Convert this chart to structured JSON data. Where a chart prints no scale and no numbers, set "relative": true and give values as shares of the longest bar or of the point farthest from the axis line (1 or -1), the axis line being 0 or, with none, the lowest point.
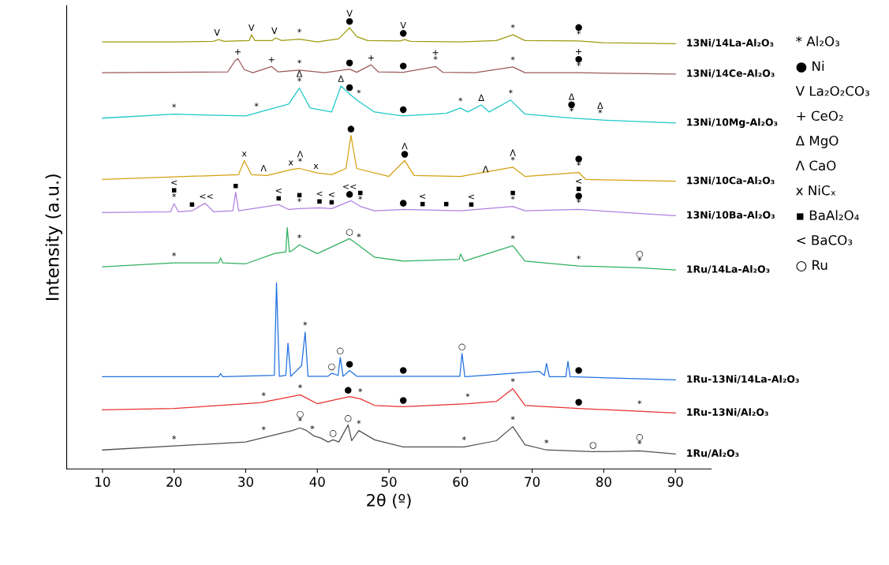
{
  "chart_data": {
    "type": "line",
    "relative": true,
    "xlabel": "2θ (º)",
    "ylabel": "Intensity (a.u.)",
    "xlim": [
      5,
      95
    ],
    "xticks": [
      10,
      20,
      30,
      40,
      50,
      60,
      70,
      80,
      90
    ],
    "grid": false,
    "legend": false,
    "marker": "none",
    "line_style": "solid",
    "series": [
      {
        "name": "13Ni/14La-Al₂O₃",
        "color": "#a09a10",
        "x": [
          10,
          20,
          25.5,
          26.2,
          27,
          30.5,
          30.8,
          31.3,
          33.7,
          34.2,
          35,
          37.5,
          40,
          43,
          44.5,
          45.5,
          47,
          51.5,
          52.2,
          53,
          60,
          65,
          67.3,
          69,
          76.5,
          80,
          90
        ],
        "values": [
          0.968,
          0.968,
          0.969,
          0.973,
          0.969,
          0.971,
          0.984,
          0.971,
          0.971,
          0.977,
          0.971,
          0.974,
          0.968,
          0.975,
          1.0,
          0.98,
          0.971,
          0.97,
          0.973,
          0.969,
          0.968,
          0.971,
          0.984,
          0.971,
          0.97,
          0.966,
          0.964
        ]
      },
      {
        "name": "13Ni/14Ce-Al₂O₃",
        "color": "#9a5a5a",
        "x": [
          10,
          27.5,
          28.5,
          28.9,
          29.8,
          31,
          33.6,
          34.5,
          37.5,
          41,
          44.5,
          45.5,
          47.5,
          48.5,
          52,
          56.5,
          57.5,
          62,
          67.3,
          69,
          76.5,
          90
        ],
        "values": [
          0.898,
          0.9,
          0.925,
          0.93,
          0.905,
          0.898,
          0.912,
          0.9,
          0.904,
          0.898,
          0.906,
          0.899,
          0.916,
          0.9,
          0.899,
          0.912,
          0.899,
          0.898,
          0.911,
          0.898,
          0.898,
          0.895
        ]
      },
      {
        "name": "13Ni/10Mg-Al₂O₃",
        "color": "#20c8c8",
        "x": [
          10,
          20,
          30,
          36,
          37.5,
          39,
          42,
          43.3,
          44.5,
          45.5,
          48,
          52,
          58,
          60,
          61,
          62.9,
          64,
          67,
          69,
          75.5,
          79.5,
          90
        ],
        "values": [
          0.795,
          0.804,
          0.8,
          0.827,
          0.863,
          0.818,
          0.809,
          0.868,
          0.85,
          0.836,
          0.809,
          0.8,
          0.806,
          0.818,
          0.809,
          0.825,
          0.809,
          0.836,
          0.804,
          0.795,
          0.791,
          0.784
        ]
      },
      {
        "name": "13Ni/10Ca-Al₂O₃",
        "color": "#d4a010",
        "x": [
          10,
          29,
          29.8,
          30.8,
          33,
          36.5,
          37.5,
          40,
          42,
          44,
          44.7,
          45.5,
          50,
          52.2,
          53.5,
          60,
          67.3,
          69,
          76.5,
          77.5,
          90
        ],
        "values": [
          0.656,
          0.667,
          0.699,
          0.667,
          0.665,
          0.679,
          0.681,
          0.671,
          0.667,
          0.681,
          0.756,
          0.681,
          0.663,
          0.699,
          0.665,
          0.663,
          0.684,
          0.663,
          0.672,
          0.656,
          0.652
        ]
      },
      {
        "name": "13Ni/10Ba-Al₂O₃",
        "color": "#b080e0",
        "x": [
          10,
          19.5,
          20,
          20.6,
          22.5,
          24.3,
          24.8,
          25.5,
          28.2,
          28.6,
          29,
          34.6,
          36,
          37.5,
          40.3,
          42,
          44.7,
          46,
          48,
          52,
          60,
          67.3,
          69,
          76.5,
          90
        ],
        "values": [
          0.581,
          0.583,
          0.601,
          0.583,
          0.585,
          0.602,
          0.595,
          0.583,
          0.585,
          0.627,
          0.585,
          0.599,
          0.588,
          0.59,
          0.592,
          0.59,
          0.608,
          0.595,
          0.585,
          0.588,
          0.585,
          0.595,
          0.585,
          0.588,
          0.574
        ]
      },
      {
        "name": "1Ru/14La-Al₂O₃",
        "color": "#30b060",
        "x": [
          10,
          20,
          26.2,
          26.5,
          26.8,
          30,
          34,
          35.6,
          35.8,
          36.1,
          36.5,
          37.5,
          40,
          44.5,
          45.5,
          48,
          52,
          59.8,
          60,
          60.5,
          67.3,
          69,
          76.5,
          85,
          90
        ],
        "values": [
          0.458,
          0.467,
          0.467,
          0.478,
          0.467,
          0.465,
          0.488,
          0.492,
          0.547,
          0.492,
          0.495,
          0.508,
          0.488,
          0.522,
          0.51,
          0.48,
          0.471,
          0.475,
          0.487,
          0.471,
          0.506,
          0.471,
          0.46,
          0.456,
          0.451
        ]
      },
      {
        "name": "1Ru-13Ni/14La-Al₂O₃",
        "color": "#2070e0",
        "x": [
          10,
          26.2,
          26.5,
          26.8,
          34,
          34.3,
          34.7,
          35.6,
          35.9,
          36.3,
          37.8,
          38.3,
          38.7,
          41.5,
          42,
          42.9,
          43.2,
          43.6,
          44.5,
          45.5,
          59.9,
          60.2,
          60.6,
          71,
          71.7,
          72,
          72.4,
          74.7,
          75,
          75.3,
          90
        ],
        "values": [
          0.209,
          0.209,
          0.216,
          0.209,
          0.212,
          0.422,
          0.21,
          0.212,
          0.285,
          0.21,
          0.234,
          0.31,
          0.21,
          0.21,
          0.217,
          0.212,
          0.253,
          0.21,
          0.223,
          0.21,
          0.21,
          0.262,
          0.209,
          0.221,
          0.212,
          0.239,
          0.209,
          0.209,
          0.244,
          0.209,
          0.202
        ]
      },
      {
        "name": "1Ru-13Ni/Al₂O₃",
        "color": "#e83030",
        "x": [
          10,
          20,
          32,
          37.6,
          40,
          44.5,
          46,
          48,
          52,
          61,
          65,
          67.3,
          69,
          76.5,
          90
        ],
        "values": [
          0.134,
          0.137,
          0.15,
          0.168,
          0.148,
          0.164,
          0.159,
          0.144,
          0.141,
          0.148,
          0.153,
          0.182,
          0.144,
          0.137,
          0.127
        ]
      },
      {
        "name": "1Ru/Al₂O₃",
        "color": "#505050",
        "x": [
          10,
          20,
          30,
          33,
          36.5,
          37.6,
          38.5,
          39.5,
          40.5,
          41.5,
          42.2,
          43,
          44.3,
          44.8,
          45.8,
          48,
          52,
          60.5,
          65,
          67.3,
          69,
          72,
          78.5,
          85,
          90
        ],
        "values": [
          0.043,
          0.052,
          0.061,
          0.073,
          0.087,
          0.093,
          0.087,
          0.075,
          0.07,
          0.061,
          0.066,
          0.061,
          0.1,
          0.064,
          0.087,
          0.066,
          0.05,
          0.05,
          0.064,
          0.096,
          0.055,
          0.043,
          0.039,
          0.041,
          0.034
        ]
      }
    ],
    "annotations": [
      "* Al₂O₃",
      "● Ni",
      "V La₂O₂CO₃",
      "+ CeO₂",
      "Δ MgO",
      "Λ CaO",
      "x NiCₓ",
      "▪ BaAl₂O₄",
      "< BaCO₃",
      "○ Ru",
      {
        "text": "V",
        "x": 26,
        "y": 0.973
      },
      {
        "text": "V",
        "x": 30.8,
        "y": 0.984
      },
      {
        "text": "V",
        "x": 34,
        "y": 0.977
      },
      {
        "text": "*",
        "x": 37.5,
        "y": 0.974
      },
      {
        "text": "V\n●",
        "x": 44.5,
        "y": 1.0
      },
      {
        "text": "V\n●",
        "x": 52,
        "y": 0.973
      },
      {
        "text": "*",
        "x": 67.3,
        "y": 0.984
      },
      {
        "text": "●\n*",
        "x": 76.5,
        "y": 0.97
      },
      {
        "text": "+",
        "x": 28.9,
        "y": 0.93
      },
      {
        "text": "+",
        "x": 33.6,
        "y": 0.912
      },
      {
        "text": "*",
        "x": 37.5,
        "y": 0.904
      },
      {
        "text": "●",
        "x": 44.5,
        "y": 0.906
      },
      {
        "text": "+",
        "x": 47.5,
        "y": 0.916
      },
      {
        "text": "●",
        "x": 52,
        "y": 0.899
      },
      {
        "text": "+\n*",
        "x": 56.5,
        "y": 0.912
      },
      {
        "text": "*",
        "x": 67.3,
        "y": 0.911
      },
      {
        "text": "+\n●\n*",
        "x": 76.5,
        "y": 0.898
      },
      {
        "text": "*",
        "x": 20,
        "y": 0.804
      },
      {
        "text": "*",
        "x": 31.5,
        "y": 0.806
      },
      {
        "text": "Δ\n*",
        "x": 37.5,
        "y": 0.863
      },
      {
        "text": "Δ",
        "x": 43.3,
        "y": 0.868
      },
      {
        "text": "●",
        "x": 44.5,
        "y": 0.85
      },
      {
        "text": "*",
        "x": 45.8,
        "y": 0.836
      },
      {
        "text": "●",
        "x": 52,
        "y": 0.8
      },
      {
        "text": "*",
        "x": 60,
        "y": 0.818
      },
      {
        "text": "Δ",
        "x": 62.9,
        "y": 0.825
      },
      {
        "text": "*",
        "x": 67,
        "y": 0.836
      },
      {
        "text": "Δ\n●\n*",
        "x": 75.5,
        "y": 0.795
      },
      {
        "text": "Δ\n*",
        "x": 79.5,
        "y": 0.791
      },
      {
        "text": "x",
        "x": 29.8,
        "y": 0.699
      },
      {
        "text": "Λ",
        "x": 32.5,
        "y": 0.665
      },
      {
        "text": "x",
        "x": 36.3,
        "y": 0.679
      },
      {
        "text": "Λ\n*",
        "x": 37.6,
        "y": 0.681
      },
      {
        "text": "x",
        "x": 39.8,
        "y": 0.671
      },
      {
        "text": "●",
        "x": 44.7,
        "y": 0.756
      },
      {
        "text": "Λ\n●",
        "x": 52.2,
        "y": 0.699
      },
      {
        "text": "Λ",
        "x": 63.5,
        "y": 0.663
      },
      {
        "text": "Λ\n*",
        "x": 67.3,
        "y": 0.684
      },
      {
        "text": "●\n*",
        "x": 76.5,
        "y": 0.672
      },
      {
        "text": "<\n▪\n*",
        "x": 20,
        "y": 0.601
      },
      {
        "text": "▪",
        "x": 22.5,
        "y": 0.585
      },
      {
        "text": "<<",
        "x": 24.5,
        "y": 0.602
      },
      {
        "text": "▪",
        "x": 28.6,
        "y": 0.627
      },
      {
        "text": "<\n▪",
        "x": 34.6,
        "y": 0.599
      },
      {
        "text": "▪\n*",
        "x": 37.5,
        "y": 0.59
      },
      {
        "text": "<\n▪",
        "x": 40.3,
        "y": 0.592
      },
      {
        "text": "<\n▪",
        "x": 42,
        "y": 0.59
      },
      {
        "text": "<<\n●",
        "x": 44.5,
        "y": 0.608
      },
      {
        "text": "▪\n*",
        "x": 46,
        "y": 0.595
      },
      {
        "text": "●",
        "x": 52,
        "y": 0.588
      },
      {
        "text": "<\n▪",
        "x": 54.7,
        "y": 0.586
      },
      {
        "text": "▪",
        "x": 58,
        "y": 0.586
      },
      {
        "text": "<\n▪",
        "x": 61.5,
        "y": 0.585
      },
      {
        "text": "▪\n*",
        "x": 67.3,
        "y": 0.595
      },
      {
        "text": "<\n▪\n●\n*",
        "x": 76.5,
        "y": 0.588
      },
      {
        "text": "*",
        "x": 20,
        "y": 0.467
      },
      {
        "text": "*",
        "x": 37.5,
        "y": 0.508
      },
      {
        "text": "○",
        "x": 44.5,
        "y": 0.522
      },
      {
        "text": "*",
        "x": 45.8,
        "y": 0.51
      },
      {
        "text": "*",
        "x": 67.3,
        "y": 0.506
      },
      {
        "text": "*",
        "x": 76.5,
        "y": 0.46
      },
      {
        "text": "○\n*",
        "x": 85,
        "y": 0.456
      },
      {
        "text": "*",
        "x": 38.3,
        "y": 0.31
      },
      {
        "text": "○",
        "x": 42,
        "y": 0.217
      },
      {
        "text": "○",
        "x": 43.2,
        "y": 0.253
      },
      {
        "text": "●",
        "x": 44.5,
        "y": 0.223
      },
      {
        "text": "●",
        "x": 52,
        "y": 0.209
      },
      {
        "text": "○",
        "x": 60.2,
        "y": 0.262
      },
      {
        "text": "●",
        "x": 76.5,
        "y": 0.209
      },
      {
        "text": "*",
        "x": 32.5,
        "y": 0.15
      },
      {
        "text": "*",
        "x": 37.6,
        "y": 0.168
      },
      {
        "text": "●",
        "x": 44.3,
        "y": 0.164
      },
      {
        "text": "*",
        "x": 46,
        "y": 0.159
      },
      {
        "text": "●",
        "x": 52,
        "y": 0.141
      },
      {
        "text": "*",
        "x": 61,
        "y": 0.148
      },
      {
        "text": "*",
        "x": 67.3,
        "y": 0.182
      },
      {
        "text": "●",
        "x": 76.5,
        "y": 0.137
      },
      {
        "text": "*",
        "x": 85,
        "y": 0.132
      },
      {
        "text": "*",
        "x": 20,
        "y": 0.052
      },
      {
        "text": "*",
        "x": 32.5,
        "y": 0.073
      },
      {
        "text": "○\n*",
        "x": 37.6,
        "y": 0.093
      },
      {
        "text": "*",
        "x": 39.3,
        "y": 0.075
      },
      {
        "text": "○",
        "x": 42.2,
        "y": 0.066
      },
      {
        "text": "○",
        "x": 44.3,
        "y": 0.1
      },
      {
        "text": "*",
        "x": 45.8,
        "y": 0.087
      },
      {
        "text": "*",
        "x": 60.5,
        "y": 0.05
      },
      {
        "text": "*",
        "x": 67.3,
        "y": 0.096
      },
      {
        "text": "*",
        "x": 72,
        "y": 0.043
      },
      {
        "text": "○",
        "x": 78.5,
        "y": 0.039
      },
      {
        "text": "○\n*",
        "x": 85,
        "y": 0.041
      }
    ]
  }
}
